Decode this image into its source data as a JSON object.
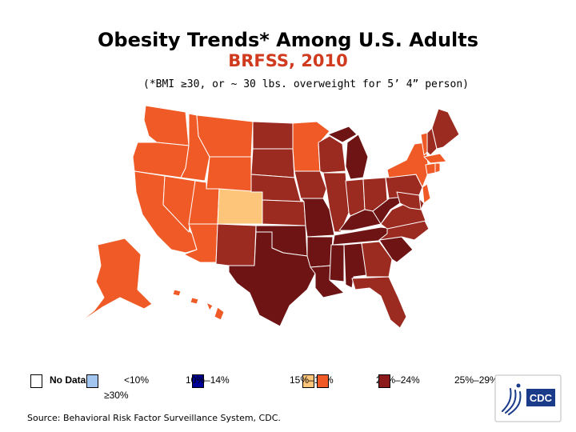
{
  "header": {
    "title": "Obesity Trends* Among U.S. Adults",
    "subtitle": "BRFSS, 2010",
    "note": "(*BMI ≥30, or ~ 30 lbs. overweight for 5’ 4” person)"
  },
  "legend": {
    "items": [
      {
        "label": "No Data",
        "color": "#ffffff"
      },
      {
        "label": "<10%",
        "color": "#a3c6f0"
      },
      {
        "label": "10%–14%",
        "color": "#000099"
      },
      {
        "label": "15%–19%",
        "color": "#fcc57a"
      },
      {
        "label": "20%–24%",
        "color": "#ef5a26"
      },
      {
        "label": "25%–29%",
        "color": "#8b1a1a"
      },
      {
        "label": "≥30%",
        "color": "#6699ee"
      }
    ]
  },
  "colors": {
    "c15_19": "#fcc57a",
    "c20_24": "#ef5a26",
    "c25_29": "#9b2a20",
    "c30": "#6e1414",
    "border": "#ffffff",
    "subtitle": "#d03a1e"
  },
  "map": {
    "regions": [
      {
        "name": "Washington",
        "abbr": "WA",
        "category": "20-24"
      },
      {
        "name": "Oregon",
        "abbr": "OR",
        "category": "20-24"
      },
      {
        "name": "California",
        "abbr": "CA",
        "category": "20-24"
      },
      {
        "name": "Nevada",
        "abbr": "NV",
        "category": "20-24"
      },
      {
        "name": "Idaho",
        "abbr": "ID",
        "category": "20-24"
      },
      {
        "name": "Montana",
        "abbr": "MT",
        "category": "20-24"
      },
      {
        "name": "Wyoming",
        "abbr": "WY",
        "category": "20-24"
      },
      {
        "name": "Utah",
        "abbr": "UT",
        "category": "20-24"
      },
      {
        "name": "Arizona",
        "abbr": "AZ",
        "category": "20-24"
      },
      {
        "name": "Colorado",
        "abbr": "CO",
        "category": "15-19"
      },
      {
        "name": "New Mexico",
        "abbr": "NM",
        "category": "25-29"
      },
      {
        "name": "North Dakota",
        "abbr": "ND",
        "category": "25-29"
      },
      {
        "name": "South Dakota",
        "abbr": "SD",
        "category": "25-29"
      },
      {
        "name": "Nebraska",
        "abbr": "NE",
        "category": "25-29"
      },
      {
        "name": "Kansas",
        "abbr": "KS",
        "category": "25-29"
      },
      {
        "name": "Oklahoma",
        "abbr": "OK",
        "category": ">=30"
      },
      {
        "name": "Texas",
        "abbr": "TX",
        "category": ">=30"
      },
      {
        "name": "Minnesota",
        "abbr": "MN",
        "category": "20-24"
      },
      {
        "name": "Iowa",
        "abbr": "IA",
        "category": "25-29"
      },
      {
        "name": "Missouri",
        "abbr": "MO",
        "category": ">=30"
      },
      {
        "name": "Arkansas",
        "abbr": "AR",
        "category": ">=30"
      },
      {
        "name": "Louisiana",
        "abbr": "LA",
        "category": ">=30"
      },
      {
        "name": "Wisconsin",
        "abbr": "WI",
        "category": "25-29"
      },
      {
        "name": "Illinois",
        "abbr": "IL",
        "category": "25-29"
      },
      {
        "name": "Michigan",
        "abbr": "MI",
        "category": ">=30"
      },
      {
        "name": "Indiana",
        "abbr": "IN",
        "category": "25-29"
      },
      {
        "name": "Ohio",
        "abbr": "OH",
        "category": "25-29"
      },
      {
        "name": "Kentucky",
        "abbr": "KY",
        "category": ">=30"
      },
      {
        "name": "Tennessee",
        "abbr": "TN",
        "category": ">=30"
      },
      {
        "name": "Mississippi",
        "abbr": "MS",
        "category": ">=30"
      },
      {
        "name": "Alabama",
        "abbr": "AL",
        "category": ">=30"
      },
      {
        "name": "Georgia",
        "abbr": "GA",
        "category": "25-29"
      },
      {
        "name": "Florida",
        "abbr": "FL",
        "category": "25-29"
      },
      {
        "name": "South Carolina",
        "abbr": "SC",
        "category": ">=30"
      },
      {
        "name": "North Carolina",
        "abbr": "NC",
        "category": "25-29"
      },
      {
        "name": "Virginia",
        "abbr": "VA",
        "category": "25-29"
      },
      {
        "name": "West Virginia",
        "abbr": "WV",
        "category": ">=30"
      },
      {
        "name": "Pennsylvania",
        "abbr": "PA",
        "category": "25-29"
      },
      {
        "name": "New York",
        "abbr": "NY",
        "category": "20-24"
      },
      {
        "name": "Vermont",
        "abbr": "VT",
        "category": "20-24"
      },
      {
        "name": "New Hampshire",
        "abbr": "NH",
        "category": "25-29"
      },
      {
        "name": "Maine",
        "abbr": "ME",
        "category": "25-29"
      },
      {
        "name": "Massachusetts",
        "abbr": "MA",
        "category": "20-24"
      },
      {
        "name": "Connecticut",
        "abbr": "CT",
        "category": "20-24"
      },
      {
        "name": "Rhode Island",
        "abbr": "RI",
        "category": "20-24"
      },
      {
        "name": "New Jersey",
        "abbr": "NJ",
        "category": "20-24"
      },
      {
        "name": "Delaware",
        "abbr": "DE",
        "category": "25-29"
      },
      {
        "name": "Maryland",
        "abbr": "MD",
        "category": "25-29"
      },
      {
        "name": "Alaska",
        "abbr": "AK",
        "category": "20-24"
      },
      {
        "name": "Hawaii",
        "abbr": "HI",
        "category": "20-24"
      }
    ]
  },
  "footer": {
    "source": "Source: Behavioral Risk Factor Surveillance System, CDC.",
    "logo_text": "CDC"
  }
}
